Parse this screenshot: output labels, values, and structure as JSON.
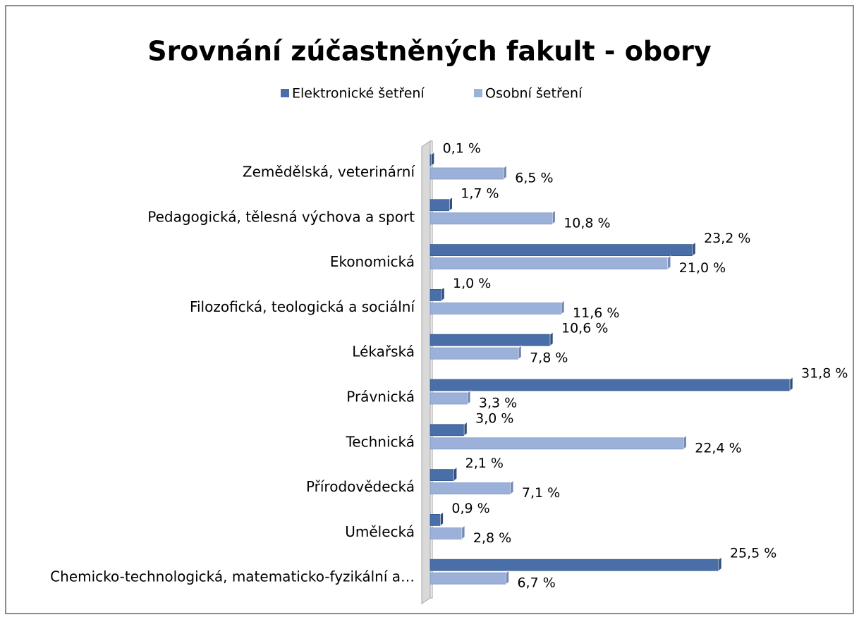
{
  "chart_data": {
    "type": "bar",
    "orientation": "horizontal",
    "title": "Srovnání zúčastněných fakult - obory",
    "categories": [
      "Zemědělská, veterinární",
      "Pedagogická, tělesná výchova a sport",
      "Ekonomická",
      "Filozofická, teologická a sociální",
      "Lékařská",
      "Právnická",
      "Technická",
      "Přírodovědecká",
      "Umělecká",
      "Chemicko-technologická, matematicko-fyzikální a…"
    ],
    "series": [
      {
        "name": "Elektronické šetření",
        "color": "#4a6ea8",
        "values": [
          0.1,
          1.7,
          23.2,
          1.0,
          10.6,
          31.8,
          3.0,
          2.1,
          0.9,
          25.5
        ],
        "value_labels": [
          "0,1 %",
          "1,7 %",
          "23,2 %",
          "1,0 %",
          "10,6 %",
          "31,8 %",
          "3,0 %",
          "2,1 %",
          "0,9 %",
          "25,5 %"
        ]
      },
      {
        "name": "Osobní šetření",
        "color": "#9cb1d9",
        "values": [
          6.5,
          10.8,
          21.0,
          11.6,
          7.8,
          3.3,
          22.4,
          7.1,
          2.8,
          6.7
        ],
        "value_labels": [
          "6,5 %",
          "10,8 %",
          "21,0 %",
          "11,6 %",
          "7,8 %",
          "3,3 %",
          "22,4 %",
          "7,1 %",
          "2,8 %",
          "6,7 %"
        ]
      }
    ],
    "legend": "top"
  }
}
